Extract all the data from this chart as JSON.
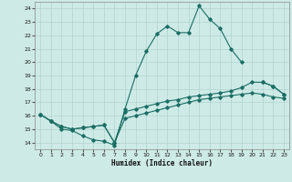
{
  "xlabel": "Humidex (Indice chaleur)",
  "bg_color": "#ceeae6",
  "grid_color": "#b0d4d0",
  "line_color": "#1a6e64",
  "xlim": [
    -0.5,
    23.5
  ],
  "ylim": [
    13.5,
    24.5
  ],
  "xticks": [
    0,
    1,
    2,
    3,
    4,
    5,
    6,
    7,
    8,
    9,
    10,
    11,
    12,
    13,
    14,
    15,
    16,
    17,
    18,
    19,
    20,
    21,
    22,
    23
  ],
  "yticks": [
    14,
    15,
    16,
    17,
    18,
    19,
    20,
    21,
    22,
    23,
    24
  ],
  "series": [
    [
      16.1,
      15.6,
      15.0,
      14.9,
      14.5,
      14.2,
      14.1,
      13.8,
      16.5,
      19.0,
      20.8,
      22.1,
      22.7,
      22.2,
      22.2,
      24.2,
      23.2,
      22.5,
      21.0,
      20.0,
      null,
      18.5,
      18.2,
      17.6
    ],
    [
      16.1,
      15.6,
      15.2,
      15.0,
      15.1,
      15.2,
      15.3,
      14.0,
      16.3,
      16.5,
      16.7,
      16.9,
      17.1,
      17.2,
      17.4,
      17.5,
      17.6,
      17.7,
      17.85,
      18.1,
      18.5,
      18.5,
      18.2,
      17.6
    ],
    [
      16.1,
      15.6,
      15.2,
      15.0,
      15.1,
      15.2,
      15.3,
      14.0,
      15.8,
      16.0,
      16.2,
      16.4,
      16.6,
      16.8,
      17.0,
      17.2,
      17.3,
      17.4,
      17.5,
      17.6,
      17.7,
      17.6,
      17.4,
      17.3
    ]
  ]
}
